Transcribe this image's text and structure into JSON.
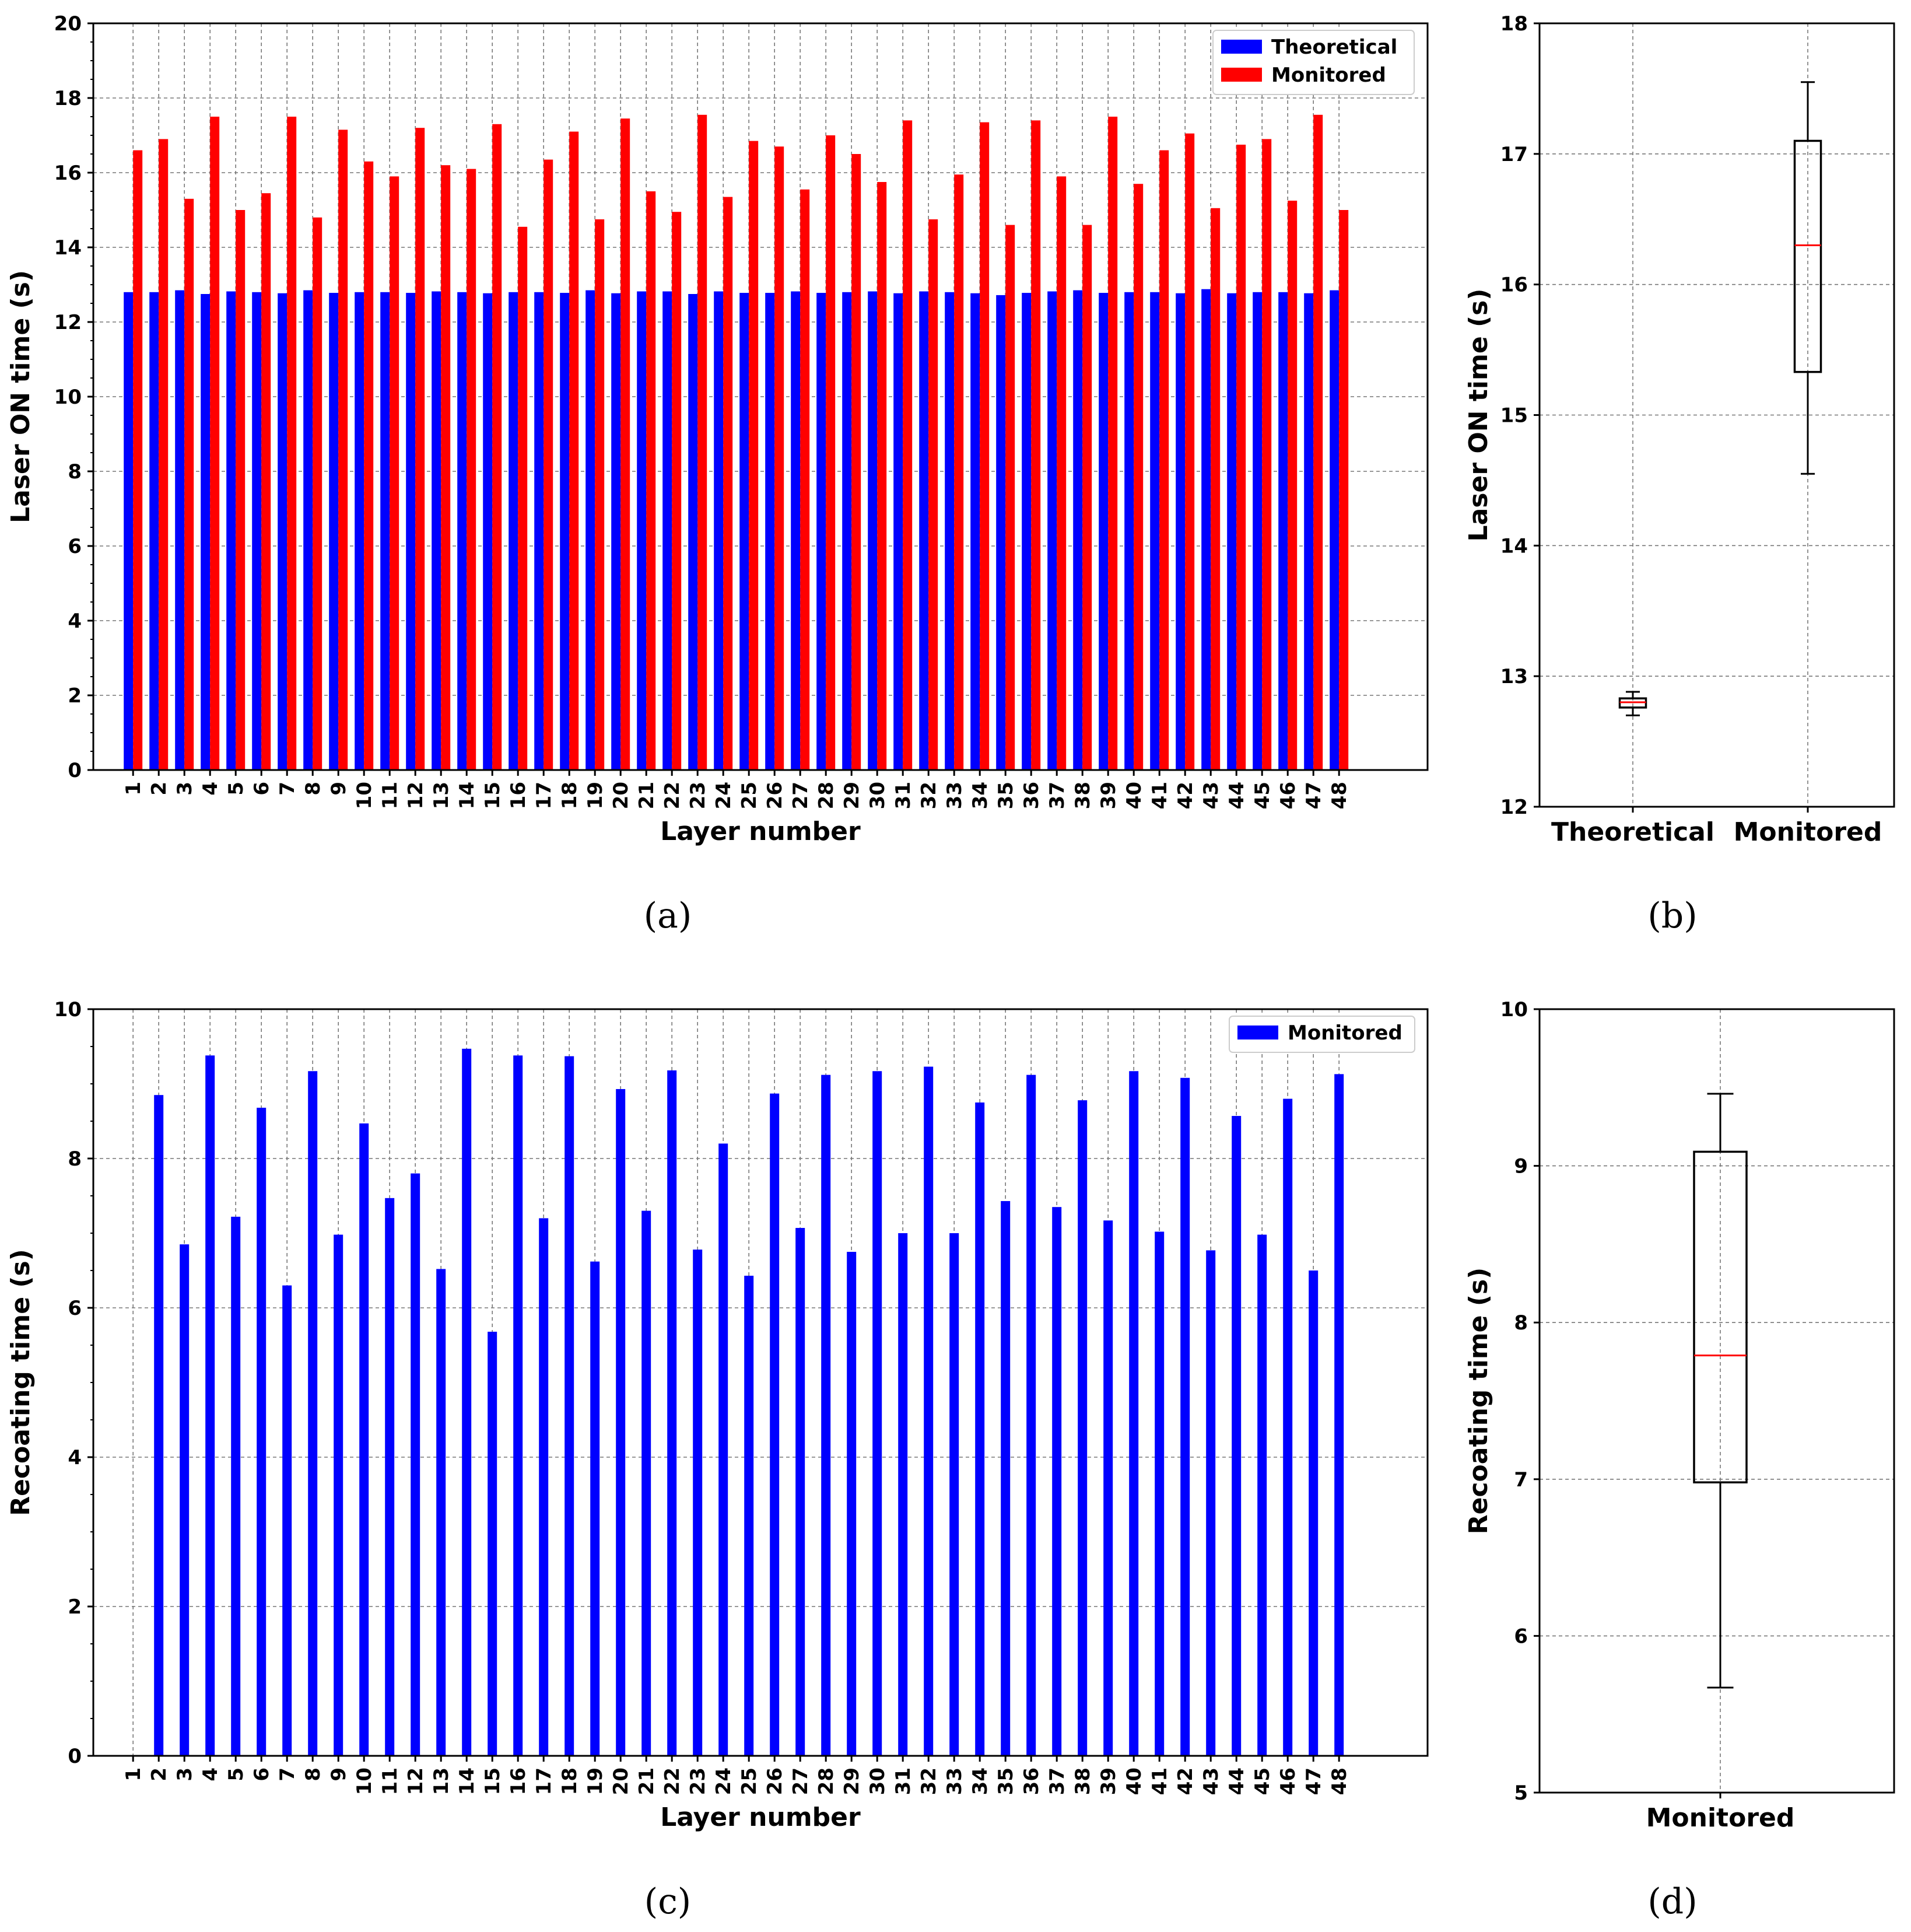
{
  "chart_data": [
    {
      "id": "a",
      "type": "bar",
      "caption": "(a)",
      "xlabel": "Layer number",
      "ylabel": "Laser ON time (s)",
      "ylim": [
        0,
        20
      ],
      "yticks": [
        0,
        2,
        4,
        6,
        8,
        10,
        12,
        14,
        16,
        18,
        20
      ],
      "grid": true,
      "legend_position": "top-right",
      "categories": [
        "1",
        "2",
        "3",
        "4",
        "5",
        "6",
        "7",
        "8",
        "9",
        "10",
        "11",
        "12",
        "13",
        "14",
        "15",
        "16",
        "17",
        "18",
        "19",
        "20",
        "21",
        "22",
        "23",
        "24",
        "25",
        "26",
        "27",
        "28",
        "29",
        "30",
        "31",
        "32",
        "33",
        "34",
        "35",
        "36",
        "37",
        "38",
        "39",
        "40",
        "41",
        "42",
        "43",
        "44",
        "45",
        "46",
        "47",
        "48"
      ],
      "series": [
        {
          "name": "Theoretical",
          "color": "#0000ff",
          "values": [
            12.8,
            12.8,
            12.85,
            12.75,
            12.82,
            12.8,
            12.77,
            12.85,
            12.78,
            12.8,
            12.8,
            12.78,
            12.82,
            12.8,
            12.77,
            12.8,
            12.8,
            12.78,
            12.85,
            12.77,
            12.82,
            12.82,
            12.75,
            12.82,
            12.78,
            12.78,
            12.82,
            12.78,
            12.8,
            12.82,
            12.77,
            12.82,
            12.8,
            12.77,
            12.72,
            12.78,
            12.82,
            12.85,
            12.78,
            12.8,
            12.8,
            12.77,
            12.88,
            12.77,
            12.8,
            12.8,
            12.77,
            12.85
          ]
        },
        {
          "name": "Monitored",
          "color": "#ff0000",
          "values": [
            16.6,
            16.9,
            15.3,
            17.5,
            15.0,
            15.45,
            17.5,
            14.8,
            17.15,
            16.3,
            15.9,
            17.2,
            16.2,
            16.1,
            17.3,
            14.55,
            16.35,
            17.1,
            14.75,
            17.45,
            15.5,
            14.95,
            17.55,
            15.35,
            16.85,
            16.7,
            15.55,
            17.0,
            16.5,
            15.75,
            17.4,
            14.75,
            15.95,
            17.35,
            14.6,
            17.4,
            15.9,
            14.6,
            17.5,
            15.7,
            16.6,
            17.05,
            15.05,
            16.75,
            16.9,
            15.25,
            17.55,
            15.0
          ]
        }
      ]
    },
    {
      "id": "b",
      "type": "boxplot",
      "caption": "(b)",
      "xlabel": "",
      "ylabel": "Laser ON time (s)",
      "ylim": [
        12,
        18
      ],
      "yticks": [
        12,
        13,
        14,
        15,
        16,
        17,
        18
      ],
      "grid": true,
      "boxes": [
        {
          "label": "Theoretical",
          "whisker_low": 12.7,
          "q1": 12.76,
          "median": 12.8,
          "q3": 12.83,
          "whisker_high": 12.88
        },
        {
          "label": "Monitored",
          "whisker_low": 14.55,
          "q1": 15.33,
          "median": 16.3,
          "q3": 17.1,
          "whisker_high": 17.55
        }
      ]
    },
    {
      "id": "c",
      "type": "bar",
      "caption": "(c)",
      "xlabel": "Layer number",
      "ylabel": "Recoating time (s)",
      "ylim": [
        0,
        10
      ],
      "yticks": [
        0,
        2,
        4,
        6,
        8,
        10
      ],
      "grid": true,
      "legend_position": "top-right",
      "categories": [
        "1",
        "2",
        "3",
        "4",
        "5",
        "6",
        "7",
        "8",
        "9",
        "10",
        "11",
        "12",
        "13",
        "14",
        "15",
        "16",
        "17",
        "18",
        "19",
        "20",
        "21",
        "22",
        "23",
        "24",
        "25",
        "26",
        "27",
        "28",
        "29",
        "30",
        "31",
        "32",
        "33",
        "34",
        "35",
        "36",
        "37",
        "38",
        "39",
        "40",
        "41",
        "42",
        "43",
        "44",
        "45",
        "46",
        "47",
        "48"
      ],
      "series": [
        {
          "name": "Monitored",
          "color": "#0000ff",
          "values": [
            0,
            8.85,
            6.85,
            9.38,
            7.22,
            8.68,
            6.3,
            9.17,
            6.98,
            8.47,
            7.47,
            7.8,
            6.52,
            9.47,
            5.68,
            9.38,
            7.2,
            9.37,
            6.62,
            8.93,
            7.3,
            9.18,
            6.78,
            8.2,
            6.43,
            8.87,
            7.07,
            9.12,
            6.75,
            9.17,
            7.0,
            9.23,
            7.0,
            8.75,
            7.43,
            9.12,
            7.35,
            8.78,
            7.17,
            9.17,
            7.02,
            9.08,
            6.77,
            8.57,
            6.98,
            8.8,
            6.5,
            9.13
          ]
        }
      ]
    },
    {
      "id": "d",
      "type": "boxplot",
      "caption": "(d)",
      "xlabel": "",
      "ylabel": "Recoating time (s)",
      "ylim": [
        5,
        10
      ],
      "yticks": [
        5,
        6,
        7,
        8,
        9,
        10
      ],
      "grid": true,
      "boxes": [
        {
          "label": "Monitored",
          "whisker_low": 5.67,
          "q1": 6.98,
          "median": 7.79,
          "q3": 9.09,
          "whisker_high": 9.46
        }
      ]
    }
  ]
}
